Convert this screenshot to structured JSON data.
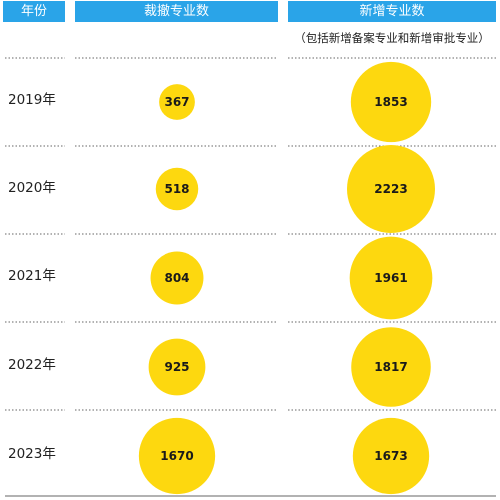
{
  "header": {
    "year_label": "年份",
    "removed_label": "裁撤专业数",
    "added_label": "新增专业数",
    "added_note": "（包括新增备案专业和新增审批专业）"
  },
  "colors": {
    "header_bg": "#2aa4e8",
    "bubble": "#fdd80f",
    "divider": "#666666"
  },
  "chart_data": {
    "type": "bubble",
    "categories": [
      "2019年",
      "2020年",
      "2021年",
      "2022年",
      "2023年"
    ],
    "series": [
      {
        "name": "裁撤专业数",
        "values": [
          367,
          518,
          804,
          925,
          1670
        ]
      },
      {
        "name": "新增专业数",
        "values": [
          1853,
          2223,
          1961,
          1817,
          1673
        ]
      }
    ]
  }
}
